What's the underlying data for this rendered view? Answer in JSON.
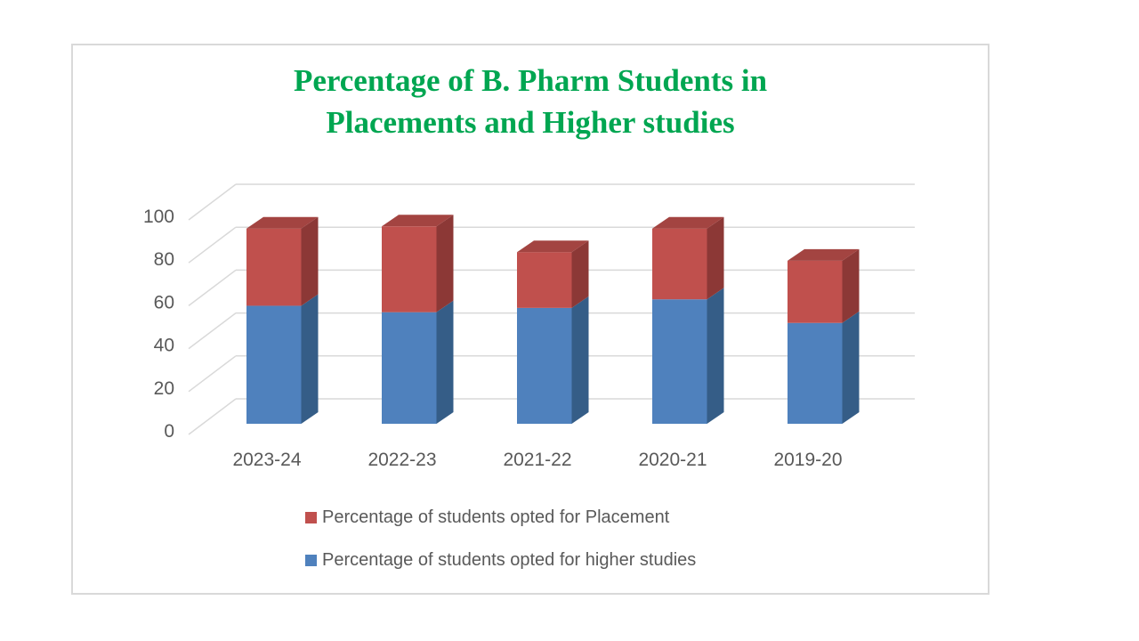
{
  "chart_data": {
    "type": "bar",
    "subtype": "stacked-3d-column",
    "title": "Percentage of B. Pharm Students in Placements and Higher studies",
    "title_lines": [
      "Percentage of B. Pharm Students in",
      "Placements and Higher studies"
    ],
    "title_color": "#00A651",
    "categories": [
      "2023-24",
      "2022-23",
      "2021-22",
      "2020-21",
      "2019-20"
    ],
    "series": [
      {
        "name": "Percentage of students opted for Placement",
        "color": "#C0504D",
        "side_color": "#8C3836",
        "top_color": "#A34441",
        "values": [
          36,
          40,
          26,
          33,
          29
        ]
      },
      {
        "name": "Percentage of students opted for higher studies",
        "color": "#4F81BD",
        "side_color": "#355D87",
        "top_color": "#6C94C4",
        "values": [
          55,
          52,
          54,
          58,
          47
        ]
      }
    ],
    "stack_order_bottom_to_top": [
      1,
      0
    ],
    "xlabel": "",
    "ylabel": "",
    "ylim": [
      0,
      100
    ],
    "yticks": [
      0,
      20,
      40,
      60,
      80,
      100
    ],
    "grid": true,
    "gridline_color": "#D9D9D9",
    "tick_label_color": "#595959",
    "legend_position": "bottom",
    "legend_order": [
      0,
      1
    ]
  },
  "panel": {
    "border_color": "#D9D9D9",
    "background": "#FFFFFF"
  }
}
